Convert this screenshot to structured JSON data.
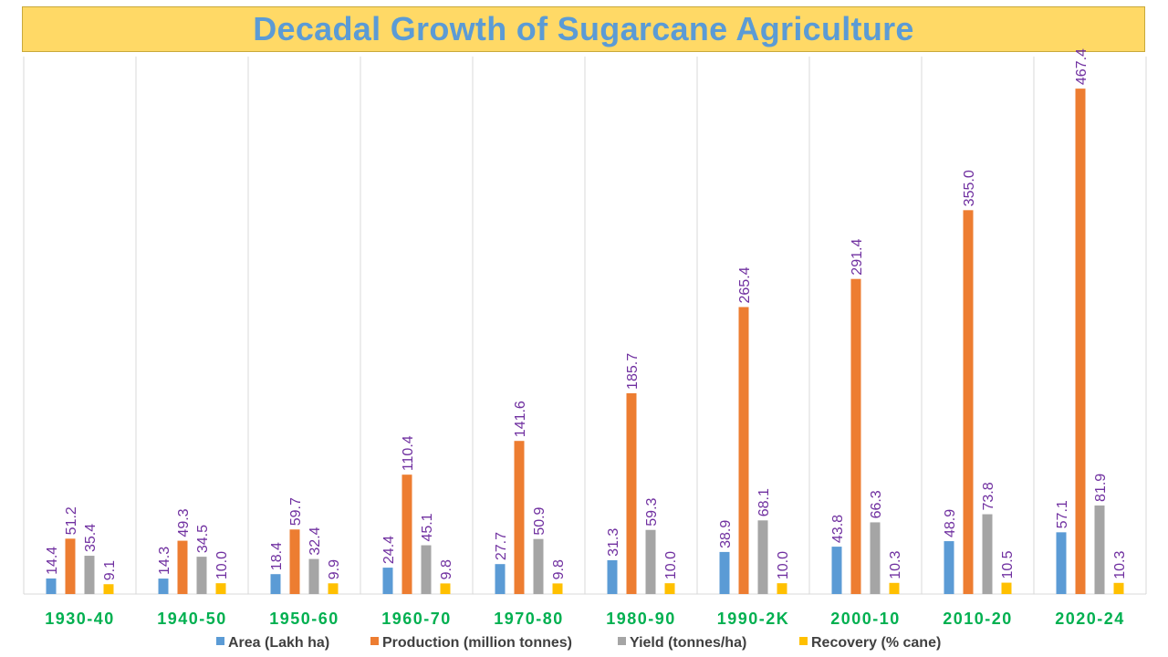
{
  "chart_data": {
    "type": "bar",
    "title": "Decadal Growth of Sugarcane Agriculture",
    "categories": [
      "1930-40",
      "1940-50",
      "1950-60",
      "1960-70",
      "1970-80",
      "1980-90",
      "1990-2K",
      "2000-10",
      "2010-20",
      "2020-24"
    ],
    "series": [
      {
        "name": "Area (Lakh ha)",
        "color": "#5b9bd5",
        "values": [
          14.4,
          14.3,
          18.4,
          24.4,
          27.7,
          31.3,
          38.9,
          43.8,
          48.9,
          57.1
        ]
      },
      {
        "name": "Production (million tonnes)",
        "color": "#ed7d31",
        "values": [
          51.2,
          49.3,
          59.7,
          110.4,
          141.6,
          185.7,
          265.4,
          291.4,
          355.0,
          467.4
        ]
      },
      {
        "name": "Yield (tonnes/ha)",
        "color": "#a5a5a5",
        "values": [
          35.4,
          34.5,
          32.4,
          45.1,
          50.9,
          59.3,
          68.1,
          66.3,
          73.8,
          81.9
        ]
      },
      {
        "name": "Recovery (% cane)",
        "color": "#ffc000",
        "values": [
          9.1,
          10.0,
          9.9,
          9.8,
          9.8,
          10.0,
          10.0,
          10.3,
          10.5,
          10.3
        ]
      }
    ],
    "ylim": [
      0,
      500
    ],
    "xlabel": "",
    "ylabel": "",
    "grid": "vertical",
    "legend": "bottom",
    "label_color": "#7030a0",
    "category_label_color": "#00b050"
  }
}
